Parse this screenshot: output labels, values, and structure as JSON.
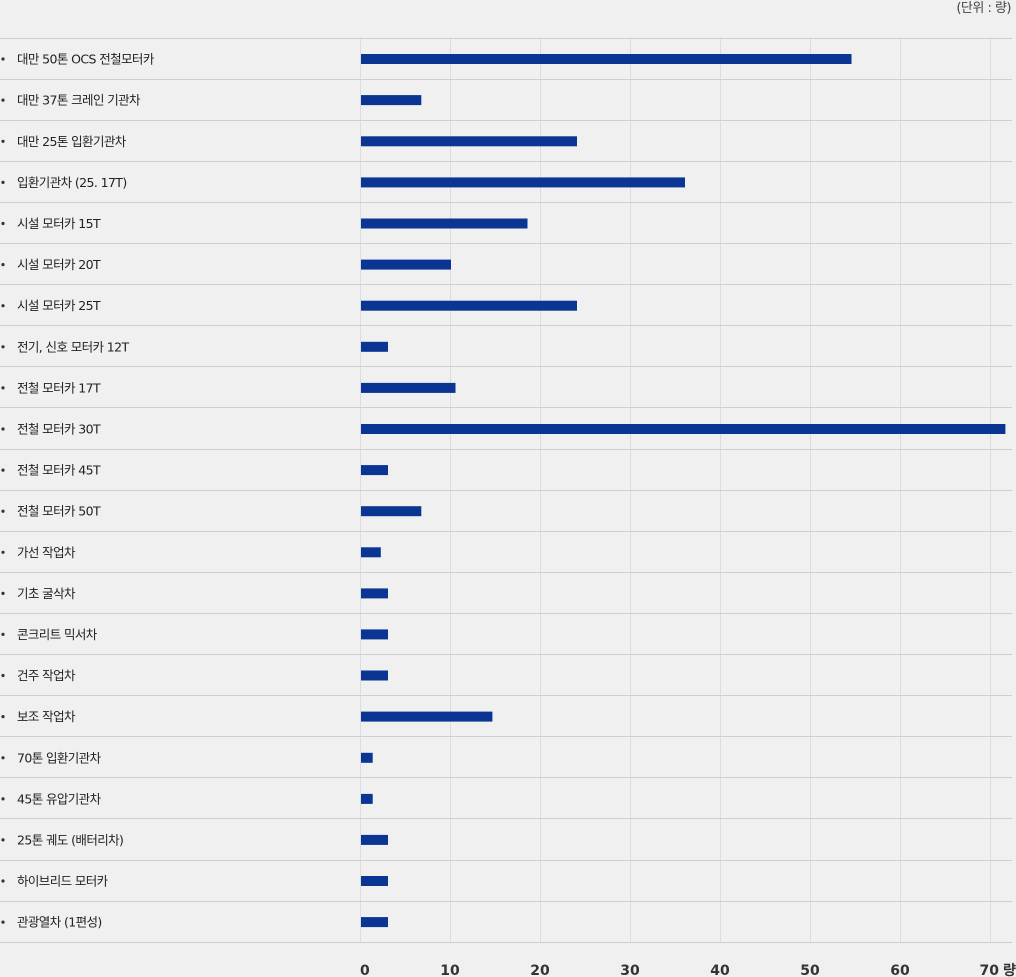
{
  "chart_data": {
    "type": "bar",
    "orientation": "horizontal",
    "unit_label": "(단위 : 량)",
    "x_unit": "량",
    "xlim": [
      0,
      70
    ],
    "x_ticks": [
      "0",
      "10",
      "20",
      "30",
      "40",
      "50",
      "60",
      "70"
    ],
    "grid": true,
    "bar_color": "#0b3593",
    "categories": [
      "대만 50톤 OCS 전철모터카",
      "대만 37톤 크레인 기관차",
      "대만 25톤 입환기관차",
      "입환기관차 (25. 17T)",
      "시설 모터카 15T",
      "시설 모터카 20T",
      "시설 모터카 25T",
      "전기, 신호 모터카 12T",
      "전철 모터카 17T",
      "전철 모터카 30T",
      "전철 모터카 45T",
      "전철 모터카 50T",
      "가선 작업차",
      "기초 굴삭차",
      "콘크리트 믹서차",
      "건주 작업차",
      "보조 작업차",
      "70톤 입환기관차",
      "45톤 유압기관차",
      "25톤 궤도 (배터리차)",
      "하이브리드 모터카",
      "관광열차 (1편성)"
    ],
    "values": [
      54.5,
      6.7,
      24,
      36,
      18.5,
      10,
      24,
      3,
      10.5,
      71.6,
      3,
      6.7,
      2.2,
      3,
      3,
      3,
      14.6,
      1.3,
      1.3,
      3,
      3,
      3
    ]
  }
}
